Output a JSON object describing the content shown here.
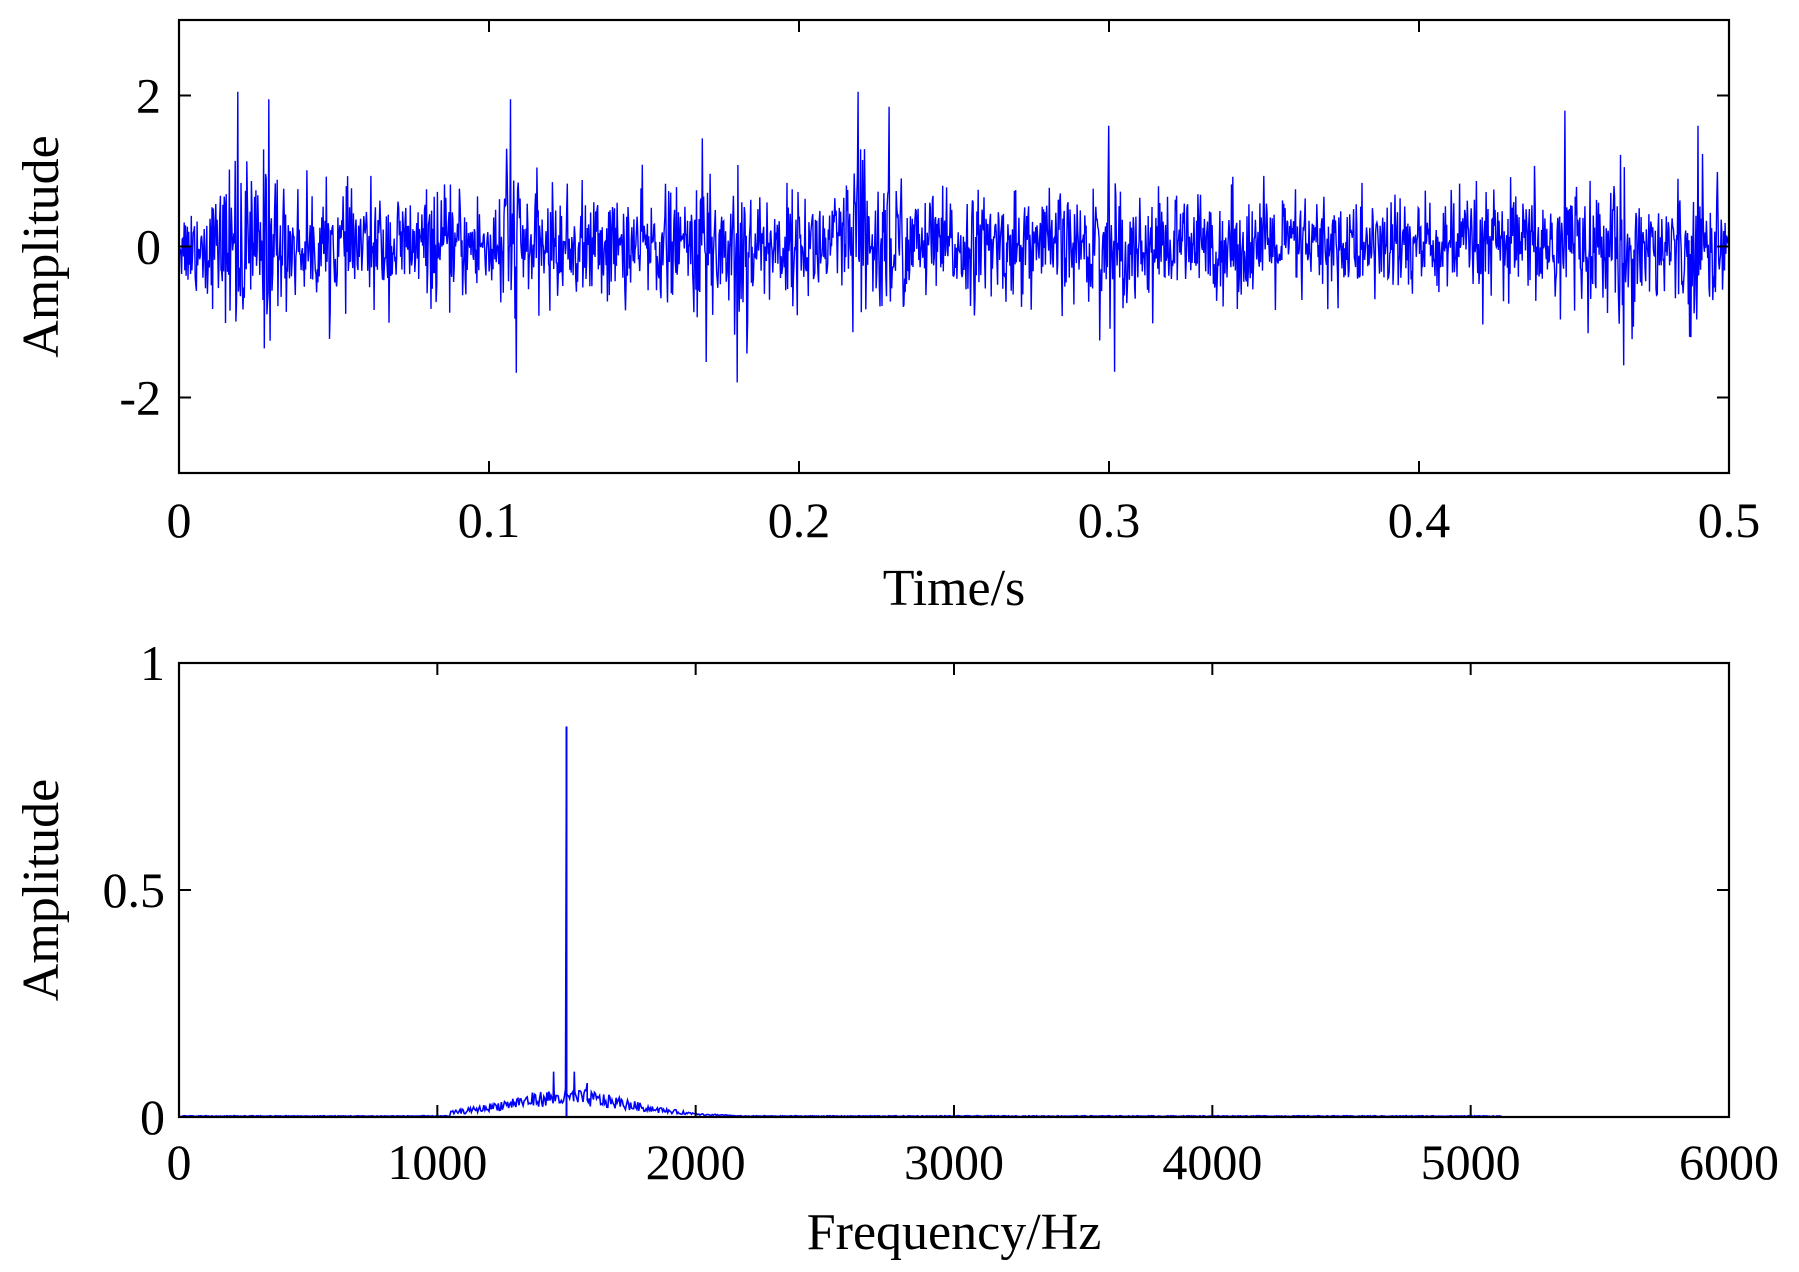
{
  "chart_data": [
    {
      "type": "line",
      "title": "",
      "xlabel": "Time/s",
      "ylabel": "Amplitude",
      "xlim": [
        0,
        0.5
      ],
      "ylim": [
        -3,
        3
      ],
      "xticks": [
        "0",
        "0.1",
        "0.2",
        "0.3",
        "0.4",
        "0.5"
      ],
      "yticks": [
        "-2",
        "0",
        "2"
      ],
      "grid": false,
      "color": "#0000ff",
      "signal": {
        "description": "dense noisy vibration signal",
        "duration": 0.5,
        "samples": 2400,
        "typical_peak": 1.3,
        "max_peak": 2.05,
        "min_peak": -2.0,
        "bursts": [
          {
            "x": 0.019,
            "peak": 2.05
          },
          {
            "x": 0.029,
            "peak": 1.95
          },
          {
            "x": 0.107,
            "peak": 1.95
          },
          {
            "x": 0.17,
            "peak": 1.7
          },
          {
            "x": 0.18,
            "peak": 2.0
          },
          {
            "x": 0.219,
            "peak": 2.05
          },
          {
            "x": 0.229,
            "peak": 1.85
          },
          {
            "x": 0.3,
            "peak": 1.6
          },
          {
            "x": 0.447,
            "peak": 1.8
          },
          {
            "x": 0.466,
            "peak": 1.75
          },
          {
            "x": 0.49,
            "peak": 1.6
          }
        ]
      }
    },
    {
      "type": "line",
      "title": "",
      "xlabel": "Frequency/Hz",
      "ylabel": "Amplitude",
      "xlim": [
        0,
        6000
      ],
      "ylim": [
        0,
        1
      ],
      "xticks": [
        "0",
        "1000",
        "2000",
        "3000",
        "4000",
        "5000",
        "6000"
      ],
      "yticks": [
        "0",
        "0.5",
        "1"
      ],
      "grid": false,
      "color": "#0000ff",
      "spectrum": {
        "peak": {
          "x": 1500,
          "y": 0.86
        },
        "band": [
          1050,
          2150
        ],
        "band_center": 1500,
        "band_max": 0.06,
        "secondary_spikes": [
          {
            "x": 1450,
            "y": 0.1
          },
          {
            "x": 1530,
            "y": 0.1
          },
          {
            "x": 1580,
            "y": 0.075
          }
        ],
        "baseline_end": 5120,
        "baseline_level": 0.002
      }
    }
  ]
}
